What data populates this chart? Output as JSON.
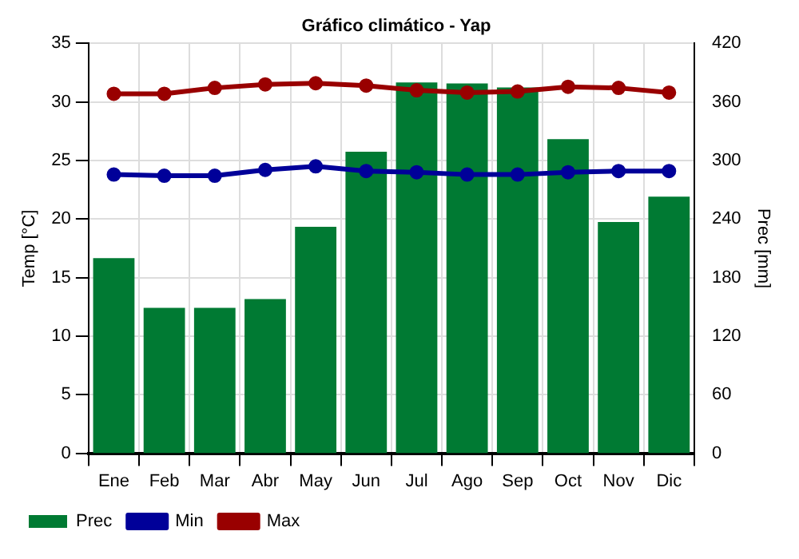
{
  "chart_data": {
    "type": "bar",
    "title": "Gráfico climático - Yap",
    "ylabel": "Temp [°C]",
    "y2label": "Prec [mm]",
    "categories": [
      "Ene",
      "Feb",
      "Mar",
      "Abr",
      "May",
      "Jun",
      "Jul",
      "Ago",
      "Sep",
      "Oct",
      "Nov",
      "Dic"
    ],
    "series": [
      {
        "name": "Prec",
        "axis": "y2",
        "color": "#007a33",
        "values": [
          200,
          149,
          149,
          158,
          232,
          309,
          380,
          379,
          375,
          322,
          237,
          263
        ]
      },
      {
        "name": "Min",
        "type": "line",
        "color": "#000099",
        "values": [
          23.8,
          23.7,
          23.7,
          24.2,
          24.5,
          24.1,
          24.0,
          23.8,
          23.8,
          24.0,
          24.1,
          24.1
        ]
      },
      {
        "name": "Max",
        "type": "line",
        "color": "#990000",
        "values": [
          30.7,
          30.7,
          31.2,
          31.5,
          31.6,
          31.4,
          31.0,
          30.8,
          30.9,
          31.3,
          31.2,
          30.8
        ]
      }
    ],
    "ylim": [
      0,
      35
    ],
    "yticks": [
      0,
      5,
      10,
      15,
      20,
      25,
      30,
      35
    ],
    "y2lim": [
      0,
      420
    ],
    "y2ticks": [
      0,
      60,
      120,
      180,
      240,
      300,
      360,
      420
    ],
    "grid": true,
    "legend": "bottom left",
    "marker": "circle",
    "line_style": "solid"
  }
}
